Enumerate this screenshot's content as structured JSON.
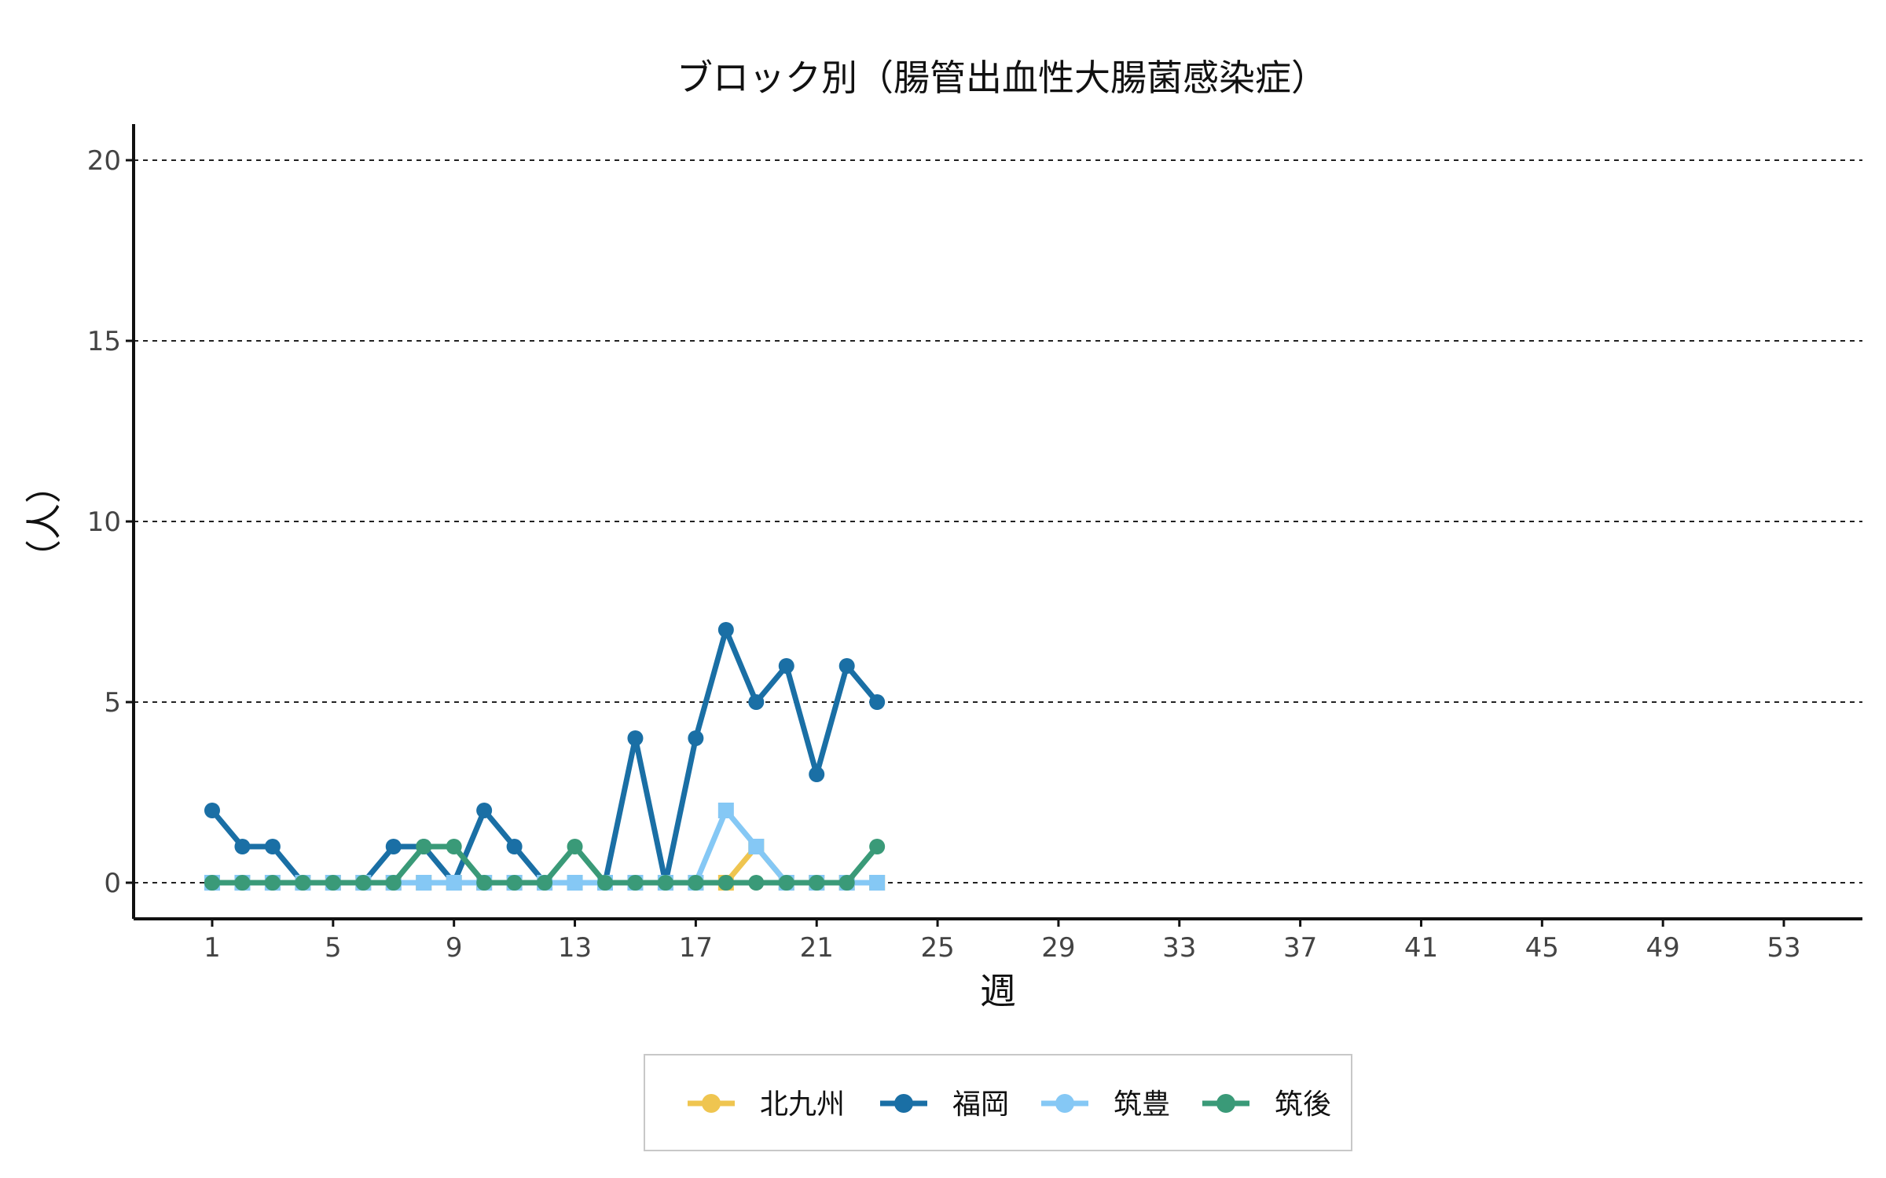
{
  "chart_data": {
    "type": "line",
    "title": "ブロック別（腸管出血性大腸菌感染症）",
    "xlabel": "週",
    "ylabel": "（人）",
    "x_ticks": [
      1,
      5,
      9,
      13,
      17,
      21,
      25,
      29,
      33,
      37,
      41,
      45,
      49,
      53
    ],
    "y_ticks": [
      0,
      5,
      10,
      15,
      20
    ],
    "xlim": [
      -1.6,
      55.6
    ],
    "ylim": [
      -1,
      21
    ],
    "grid": "horizontal-dashed",
    "legend_position": "bottom",
    "x": [
      1,
      2,
      3,
      4,
      5,
      6,
      7,
      8,
      9,
      10,
      11,
      12,
      13,
      14,
      15,
      16,
      17,
      18,
      19,
      20,
      21,
      22,
      23
    ],
    "series": [
      {
        "name": "北九州",
        "color": "#efc550",
        "marker": "square",
        "values": [
          0,
          0,
          0,
          0,
          0,
          0,
          0,
          0,
          0,
          0,
          0,
          0,
          0,
          0,
          0,
          0,
          0,
          0,
          1,
          0,
          0,
          0,
          0
        ]
      },
      {
        "name": "福岡",
        "color": "#1a6fa5",
        "marker": "circle",
        "values": [
          2,
          1,
          1,
          0,
          0,
          0,
          1,
          1,
          0,
          2,
          1,
          0,
          0,
          0,
          4,
          0,
          4,
          7,
          5,
          6,
          3,
          6,
          5
        ]
      },
      {
        "name": "筑豊",
        "color": "#85c8f5",
        "marker": "square",
        "values": [
          0,
          0,
          0,
          0,
          0,
          0,
          0,
          0,
          0,
          0,
          0,
          0,
          0,
          0,
          0,
          0,
          0,
          2,
          1,
          0,
          0,
          0,
          0
        ]
      },
      {
        "name": "筑後",
        "color": "#3a9a78",
        "marker": "circle",
        "values": [
          0,
          0,
          0,
          0,
          0,
          0,
          0,
          1,
          1,
          0,
          0,
          0,
          1,
          0,
          0,
          0,
          0,
          0,
          0,
          0,
          0,
          0,
          1
        ]
      }
    ]
  }
}
